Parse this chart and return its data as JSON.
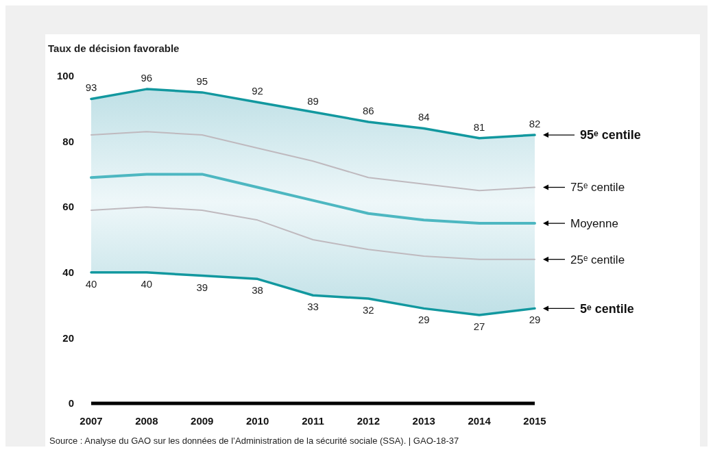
{
  "chart_data": {
    "type": "line",
    "ylabel": "Taux de décision favorable",
    "categories": [
      "2007",
      "2008",
      "2009",
      "2010",
      "2011",
      "2012",
      "2013",
      "2014",
      "2015"
    ],
    "ylim": [
      0,
      100
    ],
    "yticks": [
      0,
      20,
      40,
      60,
      80,
      100
    ],
    "grid": false,
    "legend": false,
    "marker": "none",
    "line_style": "solid",
    "series": [
      {
        "name": "95ᵉ centile",
        "color": "#12989f",
        "values": [
          93,
          96,
          95,
          92,
          89,
          86,
          84,
          81,
          82
        ],
        "value_labels": [
          "93",
          "96",
          "95",
          "92",
          "89",
          "86",
          "84",
          "81",
          "82"
        ]
      },
      {
        "name": "75ᵉ centile",
        "color": "#bfb9be",
        "values": [
          82,
          83,
          82,
          78,
          74,
          69,
          67,
          65,
          66
        ]
      },
      {
        "name": "Moyenne",
        "color": "#4db7c1",
        "values": [
          69,
          70,
          70,
          66,
          62,
          58,
          56,
          55,
          55
        ],
        "lower": [
          40,
          40,
          39,
          38,
          33,
          32,
          29,
          27,
          29
        ],
        "upper": [
          93,
          96,
          95,
          92,
          89,
          86,
          84,
          81,
          82
        ]
      },
      {
        "name": "25ᵉ centile",
        "color": "#bfb9be",
        "values": [
          59,
          60,
          59,
          56,
          50,
          47,
          45,
          44,
          44
        ]
      },
      {
        "name": "5ᵉ centile",
        "color": "#12989f",
        "values": [
          40,
          40,
          39,
          38,
          33,
          32,
          29,
          27,
          29
        ],
        "value_labels": [
          "40",
          "40",
          "39",
          "38",
          "33",
          "32",
          "29",
          "27",
          "29"
        ]
      }
    ],
    "annotations": [
      "Source : Analyse du GAO sur les données de l’Administration de la sécurité sociale (SSA). | GAO-18-37"
    ]
  }
}
